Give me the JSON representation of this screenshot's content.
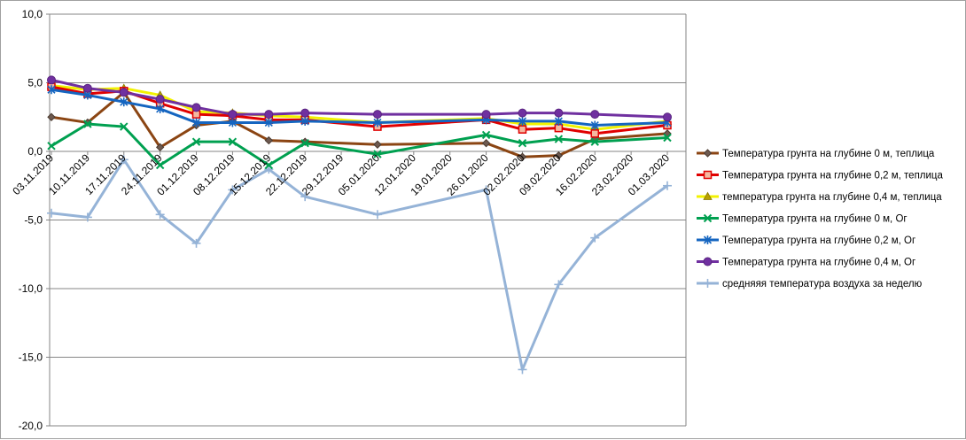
{
  "chart_data": {
    "type": "line",
    "title": "",
    "xlabel": "",
    "ylabel": "",
    "ylim": [
      -20,
      10
    ],
    "y_ticks": [
      "10,0",
      "5,0",
      "0,0",
      "-5,0",
      "-10,0",
      "-15,0",
      "-20,0"
    ],
    "categories": [
      "03.11.2019",
      "10.11.2019",
      "17.11.2019",
      "24.11.2019",
      "01.12.2019",
      "08.12.2019",
      "15.12.2019",
      "22.12.2019",
      "29.12.2019",
      "05.01.2020",
      "12.01.2020",
      "19.01.2020",
      "26.01.2020",
      "02.02.2020",
      "09.02.2020",
      "16.02.2020",
      "23.02.2020",
      "01.03.2020"
    ],
    "grid": "horizontal",
    "legend_position": "right",
    "series": [
      {
        "name": "Температура  грунта на глубине 0 м, теплица",
        "color": "#8B4513",
        "marker": "diamond",
        "values": [
          2.5,
          2.1,
          4.3,
          0.3,
          1.9,
          2.2,
          0.8,
          0.7,
          null,
          0.5,
          null,
          null,
          0.6,
          -0.4,
          -0.3,
          0.9,
          null,
          1.3
        ]
      },
      {
        "name": "Температура  грунта на глубине 0,2 м, теплица",
        "color": "#E00000",
        "marker": "square",
        "values": [
          4.7,
          4.2,
          4.4,
          3.5,
          2.7,
          2.6,
          2.3,
          2.3,
          null,
          1.8,
          null,
          null,
          2.3,
          1.6,
          1.7,
          1.3,
          null,
          1.9
        ]
      },
      {
        "name": "температура грунта на глубине 0,4 м, теплица",
        "color": "#F2F200",
        "marker": "triangle",
        "values": [
          4.8,
          4.5,
          4.6,
          4.1,
          2.9,
          2.8,
          2.6,
          2.5,
          null,
          2.1,
          null,
          null,
          2.4,
          2.0,
          2.0,
          1.6,
          null,
          2.2
        ]
      },
      {
        "name": "Температура  грунта  на глубине 0 м, Ог",
        "color": "#00A050",
        "marker": "x",
        "values": [
          0.4,
          2.0,
          1.8,
          -1.0,
          0.7,
          0.7,
          -1.0,
          0.6,
          null,
          -0.2,
          null,
          null,
          1.2,
          0.6,
          0.9,
          0.7,
          null,
          1.0
        ]
      },
      {
        "name": "Температура  грунта  на глубине 0,2 м, Ог",
        "color": "#1565C0",
        "marker": "star",
        "values": [
          4.5,
          4.1,
          3.6,
          3.1,
          2.1,
          2.1,
          2.1,
          2.2,
          null,
          2.1,
          null,
          null,
          2.3,
          2.2,
          2.2,
          1.9,
          null,
          2.1
        ]
      },
      {
        "name": "Температура  грунта  на глубине 0,4 м, Ог",
        "color": "#7030A0",
        "marker": "circle",
        "values": [
          5.2,
          4.6,
          4.3,
          3.8,
          3.2,
          2.7,
          2.7,
          2.8,
          null,
          2.7,
          null,
          null,
          2.7,
          2.8,
          2.8,
          2.7,
          null,
          2.5
        ]
      },
      {
        "name": "средняяя  температура воздуха за неделю",
        "color": "#95B3D7",
        "marker": "plus",
        "values": [
          -4.5,
          -4.8,
          -0.6,
          -4.6,
          -6.7,
          -2.8,
          -1.3,
          -3.3,
          null,
          -4.6,
          null,
          null,
          -2.8,
          -15.9,
          -9.7,
          -6.3,
          null,
          -2.5
        ]
      }
    ]
  }
}
